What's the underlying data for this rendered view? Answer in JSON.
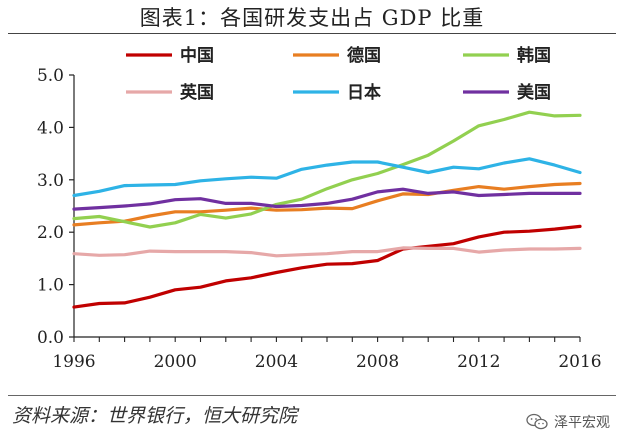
{
  "title": "图表1：各国研发支出占 GDP 比重",
  "source": "资料来源：世界银行，恒大研究院",
  "brand": {
    "name": "泽平宏观",
    "icon": "wechat-icon"
  },
  "chart_data": {
    "type": "line",
    "title": "图表1：各国研发支出占 GDP 比重",
    "xlabel": "",
    "ylabel": "",
    "xlim": [
      1996,
      2016
    ],
    "ylim": [
      0,
      5
    ],
    "x_ticks": [
      1996,
      2000,
      2004,
      2008,
      2012,
      2016
    ],
    "y_ticks": [
      0.0,
      1.0,
      2.0,
      3.0,
      4.0,
      5.0
    ],
    "y_tick_labels": [
      "0.0",
      "1.0",
      "2.0",
      "3.0",
      "4.0",
      "5.0"
    ],
    "grid": false,
    "legend": "top",
    "x": [
      1996,
      1997,
      1998,
      1999,
      2000,
      2001,
      2002,
      2003,
      2004,
      2005,
      2006,
      2007,
      2008,
      2009,
      2010,
      2011,
      2012,
      2013,
      2014,
      2015,
      2016
    ],
    "series": [
      {
        "name": "中国",
        "color": "#c00000",
        "values": [
          0.57,
          0.64,
          0.65,
          0.76,
          0.9,
          0.95,
          1.07,
          1.13,
          1.23,
          1.32,
          1.39,
          1.4,
          1.46,
          1.68,
          1.73,
          1.78,
          1.91,
          2.0,
          2.02,
          2.06,
          2.11
        ]
      },
      {
        "name": "德国",
        "color": "#e87e22",
        "values": [
          2.14,
          2.18,
          2.21,
          2.31,
          2.39,
          2.39,
          2.42,
          2.46,
          2.42,
          2.43,
          2.46,
          2.45,
          2.6,
          2.73,
          2.72,
          2.8,
          2.87,
          2.82,
          2.87,
          2.91,
          2.93
        ]
      },
      {
        "name": "韩国",
        "color": "#92d050",
        "values": [
          2.26,
          2.3,
          2.2,
          2.1,
          2.18,
          2.34,
          2.27,
          2.35,
          2.53,
          2.63,
          2.83,
          3.0,
          3.12,
          3.29,
          3.47,
          3.74,
          4.03,
          4.15,
          4.29,
          4.22,
          4.23
        ]
      },
      {
        "name": "英国",
        "color": "#e6a8a8",
        "values": [
          1.59,
          1.56,
          1.57,
          1.64,
          1.63,
          1.63,
          1.63,
          1.61,
          1.55,
          1.57,
          1.59,
          1.63,
          1.63,
          1.7,
          1.69,
          1.69,
          1.62,
          1.66,
          1.68,
          1.68,
          1.69
        ]
      },
      {
        "name": "日本",
        "color": "#2eb3e6",
        "values": [
          2.7,
          2.78,
          2.89,
          2.9,
          2.91,
          2.98,
          3.02,
          3.05,
          3.03,
          3.2,
          3.28,
          3.34,
          3.34,
          3.24,
          3.14,
          3.24,
          3.21,
          3.32,
          3.4,
          3.28,
          3.14
        ]
      },
      {
        "name": "美国",
        "color": "#7030a0",
        "values": [
          2.44,
          2.47,
          2.5,
          2.54,
          2.62,
          2.64,
          2.55,
          2.55,
          2.49,
          2.51,
          2.55,
          2.63,
          2.77,
          2.82,
          2.74,
          2.77,
          2.7,
          2.72,
          2.74,
          2.74,
          2.74
        ]
      }
    ]
  }
}
